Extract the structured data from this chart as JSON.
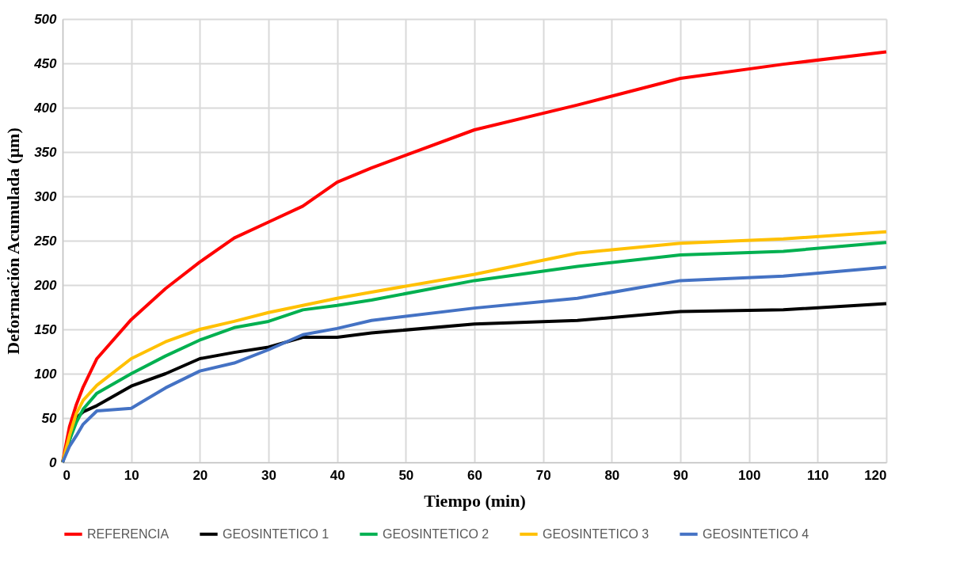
{
  "chart_data": {
    "type": "line",
    "xlabel": "Tiempo (min)",
    "ylabel": "Deformación Acumulada (µm)",
    "x": [
      0,
      1,
      2,
      3,
      5,
      10,
      15,
      20,
      25,
      30,
      35,
      40,
      45,
      60,
      75,
      90,
      105,
      120
    ],
    "series": [
      {
        "name": "REFERENCIA",
        "color": "#ff0000",
        "values": [
          0,
          40,
          65,
          85,
          117,
          161,
          196,
          226,
          253,
          271,
          289,
          316,
          332,
          375,
          403,
          433,
          449,
          463
        ]
      },
      {
        "name": "GEOSINTETICO 1",
        "color": "#000000",
        "x": [
          0,
          2,
          3,
          5,
          10,
          15,
          20,
          25,
          30,
          35,
          40,
          45,
          60,
          75,
          90,
          105,
          120
        ],
        "values": [
          0,
          50,
          57,
          64,
          86,
          100,
          117,
          124,
          130,
          141,
          141,
          146,
          156,
          160,
          170,
          172,
          179
        ]
      },
      {
        "name": "GEOSINTETICO 2",
        "color": "#00b050",
        "values": [
          0,
          25,
          45,
          60,
          78,
          100,
          120,
          138,
          152,
          159,
          172,
          177,
          183,
          205,
          221,
          234,
          238,
          248
        ]
      },
      {
        "name": "GEOSINTETICO 3",
        "color": "#ffc000",
        "values": [
          0,
          30,
          55,
          70,
          87,
          117,
          136,
          150,
          159,
          169,
          177,
          185,
          192,
          212,
          236,
          247,
          252,
          260
        ]
      },
      {
        "name": "GEOSINTETICO 4",
        "color": "#4472c4",
        "values": [
          0,
          18,
          30,
          43,
          58,
          61,
          84,
          103,
          112,
          127,
          144,
          151,
          160,
          174,
          185,
          205,
          210,
          220
        ]
      }
    ],
    "xlim": [
      0,
      120
    ],
    "xticks": [
      0,
      10,
      20,
      30,
      40,
      50,
      60,
      70,
      80,
      90,
      100,
      110,
      120
    ],
    "ylim": [
      0,
      500
    ],
    "yticks": [
      0,
      50,
      100,
      150,
      200,
      250,
      300,
      350,
      400,
      450,
      500
    ],
    "grid": true,
    "legend": "bottom",
    "marker": "none",
    "line_style": "solid"
  }
}
